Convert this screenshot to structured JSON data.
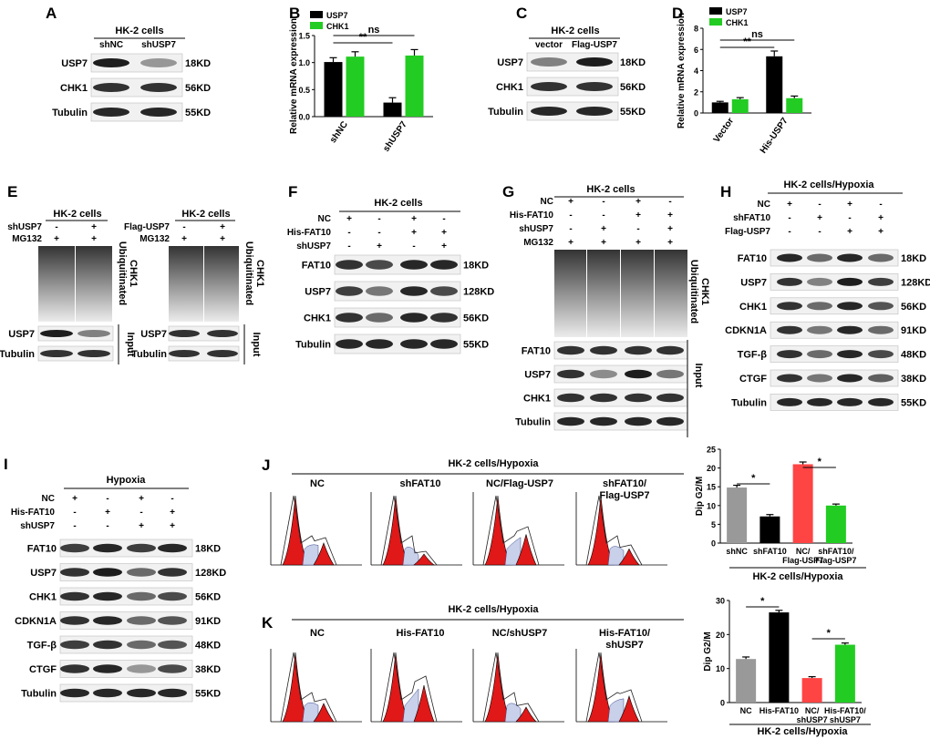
{
  "panels": {
    "A": {
      "letter": "A",
      "title": "HK-2 cells",
      "lanes": [
        "shNC",
        "shUSP7"
      ],
      "rows": [
        {
          "name": "USP7",
          "kd": "18KD"
        },
        {
          "name": "CHK1",
          "kd": "56KD"
        },
        {
          "name": "Tubulin",
          "kd": "55KD"
        }
      ]
    },
    "B": {
      "letter": "B"
    },
    "C": {
      "letter": "C",
      "title": "HK-2 cells",
      "lanes": [
        "vector",
        "Flag-USP7"
      ],
      "rows": [
        {
          "name": "USP7",
          "kd": "18KD"
        },
        {
          "name": "CHK1",
          "kd": "56KD"
        },
        {
          "name": "Tubulin",
          "kd": "55KD"
        }
      ]
    },
    "D": {
      "letter": "D"
    },
    "E": {
      "letter": "E",
      "title_left": "HK-2 cells",
      "title_right": "HK-2 cells",
      "left_conditions": [
        {
          "label": "shUSP7",
          "signs": [
            "-",
            "+"
          ]
        },
        {
          "label": "MG132",
          "signs": [
            "+",
            "+"
          ]
        }
      ],
      "right_conditions": [
        {
          "label": "Flag-USP7",
          "signs": [
            "-",
            "+"
          ]
        },
        {
          "label": "MG132",
          "signs": [
            "+",
            "+"
          ]
        }
      ],
      "ub_label": [
        "Ubiquitinated",
        "CHK1"
      ],
      "input_label": "Input",
      "rows": [
        "USP7",
        "Tubulin"
      ]
    },
    "F": {
      "letter": "F",
      "title": "HK-2 cells",
      "conditions": [
        {
          "label": "NC",
          "signs": [
            "+",
            "-",
            "+",
            "-"
          ]
        },
        {
          "label": "His-FAT10",
          "signs": [
            "-",
            "-",
            "+",
            "+"
          ]
        },
        {
          "label": "shUSP7",
          "signs": [
            "-",
            "+",
            "-",
            "+"
          ]
        }
      ],
      "rows": [
        {
          "name": "FAT10",
          "kd": "18KD"
        },
        {
          "name": "USP7",
          "kd": "128KD"
        },
        {
          "name": "CHK1",
          "kd": "56KD"
        },
        {
          "name": "Tubulin",
          "kd": "55KD"
        }
      ]
    },
    "G": {
      "letter": "G",
      "title": "HK-2 cells",
      "conditions": [
        {
          "label": "NC",
          "signs": [
            "+",
            "-",
            "+",
            "-"
          ]
        },
        {
          "label": "His-FAT10",
          "signs": [
            "-",
            "-",
            "+",
            "+"
          ]
        },
        {
          "label": "shUSP7",
          "signs": [
            "-",
            "+",
            "-",
            "+"
          ]
        },
        {
          "label": "MG132",
          "signs": [
            "+",
            "+",
            "+",
            "+"
          ]
        }
      ],
      "ub_label": [
        "Ubiquitinated",
        "CHK1"
      ],
      "input_label": "Input",
      "rows": [
        "FAT10",
        "USP7",
        "CHK1",
        "Tubulin"
      ]
    },
    "H": {
      "letter": "H",
      "title": "HK-2 cells/Hypoxia",
      "conditions": [
        {
          "label": "NC",
          "signs": [
            "+",
            "-",
            "+",
            "-"
          ]
        },
        {
          "label": "shFAT10",
          "signs": [
            "-",
            "+",
            "-",
            "+"
          ]
        },
        {
          "label": "Flag-USP7",
          "signs": [
            "-",
            "-",
            "+",
            "+"
          ]
        }
      ],
      "rows": [
        {
          "name": "FAT10",
          "kd": "18KD"
        },
        {
          "name": "USP7",
          "kd": "128KD"
        },
        {
          "name": "CHK1",
          "kd": "56KD"
        },
        {
          "name": "CDKN1A",
          "kd": "91KD"
        },
        {
          "name": "TGF-β",
          "kd": "48KD"
        },
        {
          "name": "CTGF",
          "kd": "38KD"
        },
        {
          "name": "Tubulin",
          "kd": "55KD"
        }
      ]
    },
    "I": {
      "letter": "I",
      "title": "Hypoxia",
      "conditions": [
        {
          "label": "NC",
          "signs": [
            "+",
            "-",
            "+",
            "-"
          ]
        },
        {
          "label": "His-FAT10",
          "signs": [
            "-",
            "+",
            "-",
            "+"
          ]
        },
        {
          "label": "shUSP7",
          "signs": [
            "-",
            "-",
            "+",
            "+"
          ]
        }
      ],
      "rows": [
        {
          "name": "FAT10",
          "kd": "18KD"
        },
        {
          "name": "USP7",
          "kd": "128KD"
        },
        {
          "name": "CHK1",
          "kd": "56KD"
        },
        {
          "name": "CDKN1A",
          "kd": "91KD"
        },
        {
          "name": "TGF-β",
          "kd": "48KD"
        },
        {
          "name": "CTGF",
          "kd": "38KD"
        },
        {
          "name": "Tubulin",
          "kd": "55KD"
        }
      ]
    },
    "J": {
      "letter": "J",
      "title": "HK-2 cells/Hypoxia",
      "flow_labels": [
        "NC",
        "shFAT10",
        "NC/Flag-USP7",
        "shFAT10/Flag-USP7"
      ],
      "group_label": "HK-2 cells/Hypoxia"
    },
    "K": {
      "letter": "K",
      "title": "HK-2 cells/Hypoxia",
      "flow_labels": [
        "NC",
        "His-FAT10",
        "NC/shUSP7",
        "His-FAT10/shUSP7"
      ],
      "group_label": "HK-2 cells/Hypoxia"
    }
  },
  "chart_data": [
    {
      "panel": "B",
      "type": "bar",
      "categories": [
        "shNC",
        "shUSP7"
      ],
      "series": [
        {
          "name": "USP7",
          "color": "#000000",
          "values": [
            1.01,
            0.26
          ],
          "errors": [
            0.08,
            0.09
          ]
        },
        {
          "name": "CHK1",
          "color": "#22cc22",
          "values": [
            1.11,
            1.13
          ],
          "errors": [
            0.09,
            0.11
          ]
        }
      ],
      "ylabel": "Relative mRNA expression",
      "ylim": [
        0.0,
        1.5
      ],
      "yticks": [
        "0.0",
        "0.5",
        "1.0",
        "1.5"
      ],
      "annotations": [
        "**",
        "ns"
      ],
      "legend": "top-left"
    },
    {
      "panel": "D",
      "type": "bar",
      "categories": [
        "Vector",
        "His-USP7"
      ],
      "series": [
        {
          "name": "USP7",
          "color": "#000000",
          "values": [
            1.0,
            5.35
          ],
          "errors": [
            0.1,
            0.5
          ]
        },
        {
          "name": "CHK1",
          "color": "#22cc22",
          "values": [
            1.3,
            1.4
          ],
          "errors": [
            0.15,
            0.2
          ]
        }
      ],
      "ylabel": "Relative mRNA expression",
      "ylim": [
        0,
        8
      ],
      "yticks": [
        "0",
        "2",
        "4",
        "6",
        "8"
      ],
      "annotations": [
        "**",
        "ns"
      ],
      "legend": "top-left"
    },
    {
      "panel": "J",
      "type": "bar",
      "categories": [
        "shNC",
        "shFAT10",
        "NC/Flag-USP7",
        "shFAT10/Flag-USP7"
      ],
      "series": [
        {
          "values": [
            14.8,
            7.1,
            21.0,
            10.0
          ],
          "errors": [
            0.6,
            0.5,
            0.6,
            0.4
          ],
          "colors": [
            "#999999",
            "#000000",
            "#ff4444",
            "#22cc22"
          ]
        }
      ],
      "ylabel": "Dip G2/M",
      "ylim": [
        0,
        25
      ],
      "yticks": [
        "0",
        "5",
        "10",
        "15",
        "20",
        "25"
      ],
      "annotations": [
        "*",
        "*"
      ]
    },
    {
      "panel": "K",
      "type": "bar",
      "categories": [
        "NC",
        "His-FAT10",
        "NC/shUSP7",
        "His-FAT10/shUSP7"
      ],
      "series": [
        {
          "values": [
            12.8,
            26.5,
            7.2,
            17.0
          ],
          "errors": [
            0.6,
            0.6,
            0.4,
            0.5
          ],
          "colors": [
            "#999999",
            "#000000",
            "#ff4444",
            "#22cc22"
          ]
        }
      ],
      "ylabel": "Dip G2/M",
      "ylim": [
        0,
        30
      ],
      "yticks": [
        "0",
        "10",
        "20",
        "30"
      ],
      "annotations": [
        "*",
        "*"
      ]
    }
  ]
}
